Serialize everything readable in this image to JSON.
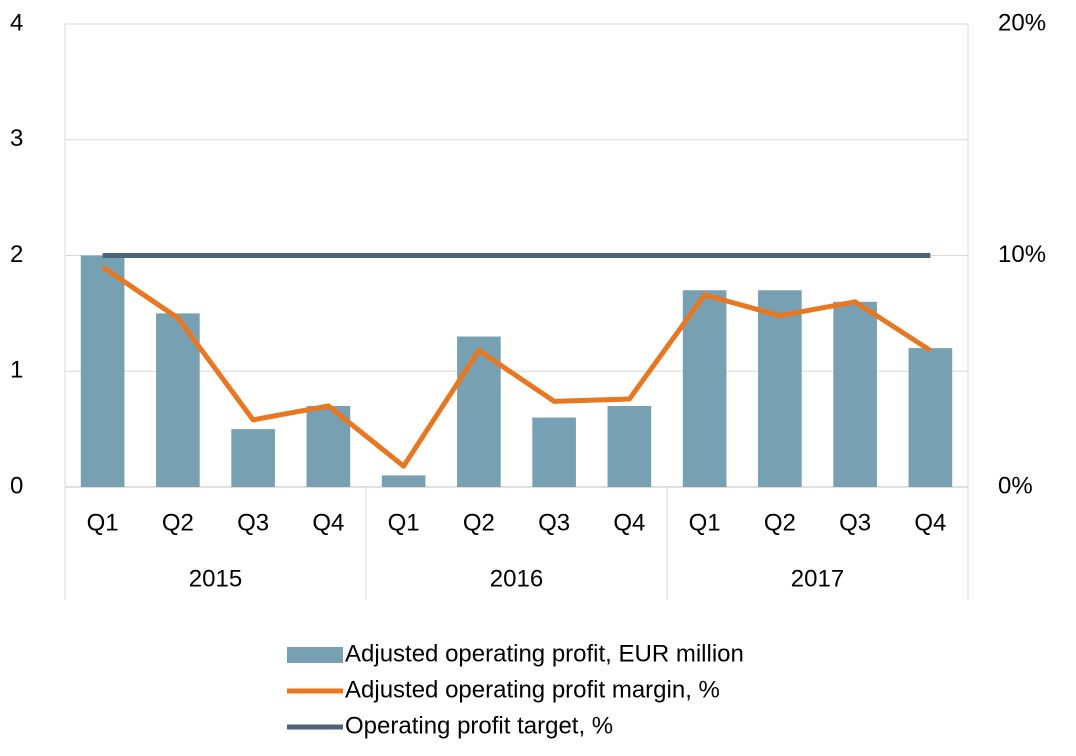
{
  "chart_data": {
    "type": "bar_line",
    "categories": [
      "Q1",
      "Q2",
      "Q3",
      "Q4",
      "Q1",
      "Q2",
      "Q3",
      "Q4",
      "Q1",
      "Q2",
      "Q3",
      "Q4"
    ],
    "groups": [
      "2015",
      "2016",
      "2017"
    ],
    "series": [
      {
        "name": "Adjusted operating profit, EUR million",
        "type": "bar",
        "color": "#77a1b2",
        "axis": "y",
        "values": [
          2.0,
          1.5,
          0.5,
          0.7,
          0.1,
          1.3,
          0.6,
          0.7,
          1.7,
          1.7,
          1.6,
          1.2
        ]
      },
      {
        "name": "Adjusted operating profit margin, %",
        "type": "line",
        "color": "#e87722",
        "axis": "y2",
        "values": [
          9.5,
          7.3,
          2.9,
          3.5,
          0.9,
          5.9,
          3.7,
          3.8,
          8.3,
          7.4,
          8.0,
          5.9
        ]
      },
      {
        "name": "Operating profit target, %",
        "type": "line",
        "color": "#4a6478",
        "axis": "y2",
        "values": [
          10,
          10,
          10,
          10,
          10,
          10,
          10,
          10,
          10,
          10,
          10,
          10
        ]
      }
    ],
    "ylim": [
      0,
      4
    ],
    "yticks": [
      0,
      1,
      2,
      3,
      4
    ],
    "y2lim": [
      0,
      20
    ],
    "y2ticks": [
      {
        "value": 0,
        "label": "0%"
      },
      {
        "value": 10,
        "label": "10%"
      },
      {
        "value": 20,
        "label": "20%"
      }
    ],
    "grid": true,
    "legend": "bottom"
  }
}
